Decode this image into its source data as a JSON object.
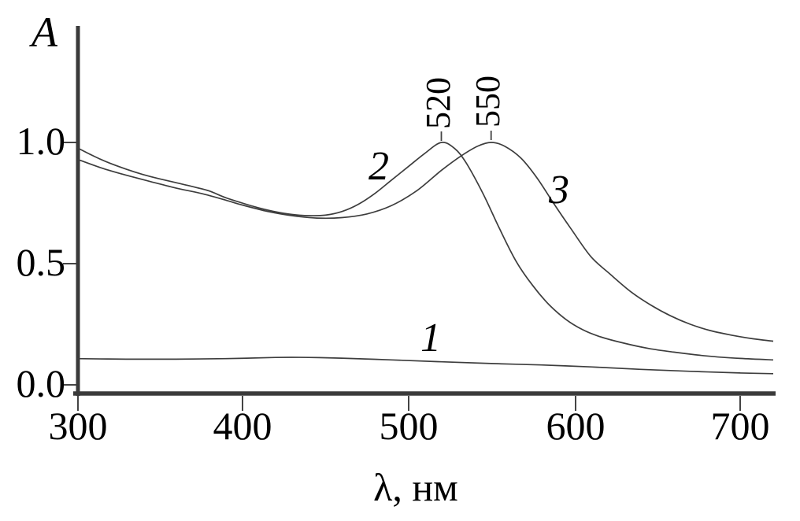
{
  "axes": {
    "y_label": "A",
    "x_label": "λ, нм",
    "y_ticks": [
      "1.0",
      "0.5",
      "0.0"
    ],
    "x_ticks": [
      "300",
      "400",
      "500",
      "600",
      "700"
    ]
  },
  "curve_labels": [
    "1",
    "2",
    "3"
  ],
  "peak_annotations": [
    "520",
    "550"
  ],
  "chart_data": {
    "type": "line",
    "title": "",
    "xlabel": "λ, нм",
    "ylabel": "A",
    "xlim": [
      300,
      720
    ],
    "ylim": [
      0,
      1.48
    ],
    "x_ticks": [
      300,
      400,
      500,
      600,
      700
    ],
    "y_ticks": [
      0.0,
      0.5,
      1.0
    ],
    "grid": false,
    "legend_position": "none (curves numbered inline)",
    "line_color": "#3d3d3d",
    "annotations": [
      {
        "label": "520",
        "x_nm": 520,
        "y_A": 1.0
      },
      {
        "label": "550",
        "x_nm": 550,
        "y_A": 1.0
      }
    ],
    "series": [
      {
        "name": "1",
        "points": [
          [
            300,
            0.108
          ],
          [
            330,
            0.106
          ],
          [
            360,
            0.106
          ],
          [
            390,
            0.108
          ],
          [
            420,
            0.113
          ],
          [
            440,
            0.113
          ],
          [
            460,
            0.11
          ],
          [
            490,
            0.103
          ],
          [
            520,
            0.095
          ],
          [
            550,
            0.088
          ],
          [
            580,
            0.082
          ],
          [
            610,
            0.074
          ],
          [
            640,
            0.064
          ],
          [
            670,
            0.056
          ],
          [
            700,
            0.049
          ],
          [
            720,
            0.046
          ]
        ]
      },
      {
        "name": "2",
        "peak_nm": 520,
        "points": [
          [
            300,
            0.98
          ],
          [
            310,
            0.945
          ],
          [
            320,
            0.915
          ],
          [
            330,
            0.89
          ],
          [
            340,
            0.868
          ],
          [
            350,
            0.85
          ],
          [
            360,
            0.834
          ],
          [
            370,
            0.818
          ],
          [
            380,
            0.8
          ],
          [
            390,
            0.772
          ],
          [
            400,
            0.75
          ],
          [
            410,
            0.73
          ],
          [
            420,
            0.714
          ],
          [
            430,
            0.703
          ],
          [
            440,
            0.698
          ],
          [
            450,
            0.7
          ],
          [
            460,
            0.715
          ],
          [
            470,
            0.745
          ],
          [
            480,
            0.79
          ],
          [
            490,
            0.845
          ],
          [
            500,
            0.9
          ],
          [
            510,
            0.955
          ],
          [
            520,
            1.0
          ],
          [
            528,
            0.975
          ],
          [
            535,
            0.915
          ],
          [
            545,
            0.79
          ],
          [
            555,
            0.645
          ],
          [
            565,
            0.51
          ],
          [
            575,
            0.41
          ],
          [
            585,
            0.33
          ],
          [
            595,
            0.27
          ],
          [
            605,
            0.228
          ],
          [
            615,
            0.2
          ],
          [
            630,
            0.172
          ],
          [
            645,
            0.15
          ],
          [
            660,
            0.135
          ],
          [
            680,
            0.119
          ],
          [
            700,
            0.109
          ],
          [
            720,
            0.103
          ]
        ]
      },
      {
        "name": "3",
        "peak_nm": 550,
        "points": [
          [
            300,
            0.932
          ],
          [
            315,
            0.895
          ],
          [
            330,
            0.865
          ],
          [
            345,
            0.838
          ],
          [
            360,
            0.812
          ],
          [
            375,
            0.79
          ],
          [
            390,
            0.762
          ],
          [
            400,
            0.742
          ],
          [
            415,
            0.716
          ],
          [
            430,
            0.698
          ],
          [
            445,
            0.688
          ],
          [
            460,
            0.69
          ],
          [
            475,
            0.705
          ],
          [
            490,
            0.74
          ],
          [
            505,
            0.8
          ],
          [
            520,
            0.885
          ],
          [
            532,
            0.945
          ],
          [
            542,
            0.985
          ],
          [
            550,
            1.0
          ],
          [
            558,
            0.985
          ],
          [
            568,
            0.935
          ],
          [
            578,
            0.85
          ],
          [
            588,
            0.745
          ],
          [
            598,
            0.645
          ],
          [
            610,
            0.53
          ],
          [
            622,
            0.455
          ],
          [
            634,
            0.385
          ],
          [
            646,
            0.33
          ],
          [
            658,
            0.285
          ],
          [
            670,
            0.25
          ],
          [
            682,
            0.224
          ],
          [
            695,
            0.205
          ],
          [
            708,
            0.19
          ],
          [
            720,
            0.18
          ]
        ]
      }
    ]
  }
}
